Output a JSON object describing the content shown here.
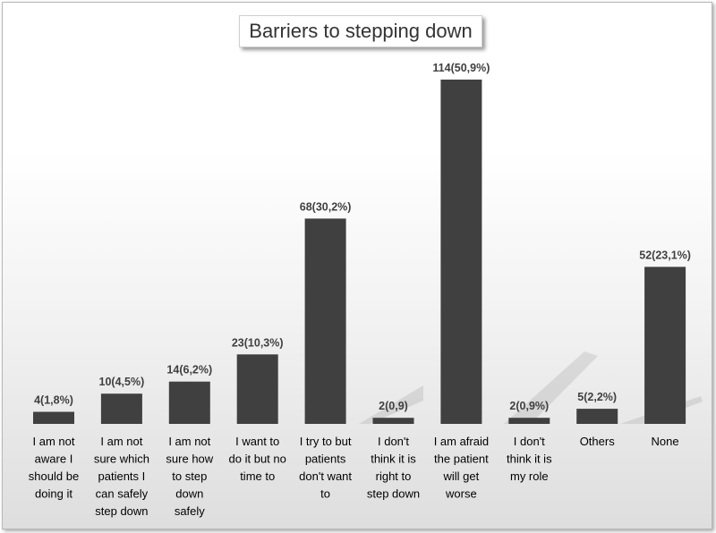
{
  "chart_data": {
    "type": "bar",
    "title": "Barriers to stepping down",
    "xlabel": "",
    "ylabel": "",
    "ylim": [
      0,
      120
    ],
    "grid": false,
    "legend": "none",
    "bar_color": "#404040",
    "categories": [
      "I am not aware I should be doing it",
      "I am not sure which patients I can safely step down",
      "I am not sure how to step down safely",
      "I want to do it but no time to",
      "I try to but patients don't want to",
      "I don't think it is right to step down",
      "I am afraid the patient will get worse",
      "I don't think it is my role",
      "Others",
      "None"
    ],
    "category_lines": [
      [
        "I am not",
        "aware I",
        "should be",
        "doing it"
      ],
      [
        "I am not",
        "sure which",
        "patients I",
        "can safely",
        "step down"
      ],
      [
        "I am not",
        "sure how",
        "to step",
        "down",
        "safely"
      ],
      [
        "I want to",
        "do it but no",
        "time to"
      ],
      [
        "I try to but",
        "patients",
        "don't want",
        "to"
      ],
      [
        "I don't",
        "think it is",
        "right to",
        "step down"
      ],
      [
        "I am afraid",
        "the patient",
        "will get",
        "worse"
      ],
      [
        "I don't",
        "think it is",
        "my role"
      ],
      [
        "Others"
      ],
      [
        "None"
      ]
    ],
    "values": [
      4,
      10,
      14,
      23,
      68,
      2,
      114,
      2,
      5,
      52
    ],
    "data_labels": [
      "4(1,8%)",
      "10(4,5%)",
      "14(6,2%)",
      "23(10,3%)",
      "68(30,2%)",
      "2(0,9)",
      "114(50,9%)",
      "2(0,9%)",
      "5(2,2%)",
      "52(23,1%)"
    ]
  }
}
